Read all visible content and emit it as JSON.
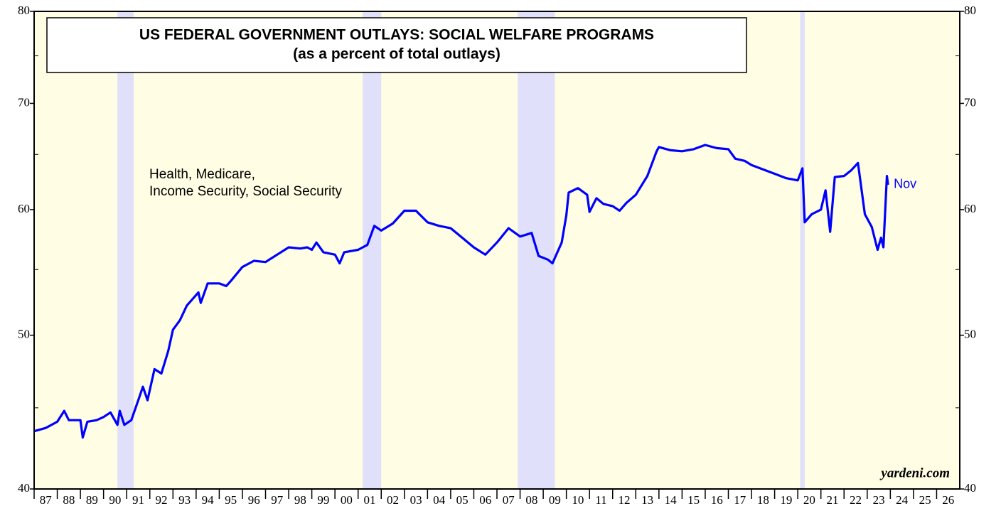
{
  "chart_data": {
    "type": "line",
    "title": "US FEDERAL GOVERNMENT OUTLAYS: SOCIAL WELFARE PROGRAMS",
    "subtitle": "(as a percent of total outlays)",
    "annotation": [
      "Health, Medicare,",
      "Income Security, Social Security"
    ],
    "end_label": "Nov",
    "source": "yardeni.com",
    "log_scale": true,
    "color": "#0000ff",
    "background": "#fffde3",
    "shade_color": "#e0e0fa",
    "shaded_periods": [
      [
        1990.6,
        1991.3
      ],
      [
        2001.2,
        2002.0
      ],
      [
        2007.9,
        2009.5
      ],
      [
        2020.1,
        2020.3
      ]
    ],
    "x": [
      1987.0,
      1987.5,
      1988.0,
      1988.3,
      1988.5,
      1989.0,
      1989.1,
      1989.3,
      1989.7,
      1990.0,
      1990.3,
      1990.6,
      1990.7,
      1990.9,
      1991.2,
      1991.5,
      1991.7,
      1991.9,
      1992.2,
      1992.5,
      1992.8,
      1993.0,
      1993.3,
      1993.6,
      1993.9,
      1994.1,
      1994.2,
      1994.5,
      1995.0,
      1995.3,
      1995.5,
      1996.0,
      1996.5,
      1997.0,
      1997.5,
      1998.0,
      1998.5,
      1998.8,
      1999.0,
      1999.2,
      1999.5,
      2000.0,
      2000.2,
      2000.4,
      2001.0,
      2001.4,
      2001.7,
      2002.0,
      2002.5,
      2003.0,
      2003.5,
      2004.0,
      2004.5,
      2005.0,
      2005.5,
      2006.0,
      2006.5,
      2007.0,
      2007.5,
      2008.0,
      2008.5,
      2008.8,
      2009.2,
      2009.4,
      2009.8,
      2010.0,
      2010.1,
      2010.5,
      2010.9,
      2011.0,
      2011.3,
      2011.6,
      2012.0,
      2012.3,
      2012.6,
      2013.0,
      2013.5,
      2013.9,
      2014.0,
      2014.5,
      2015.0,
      2015.5,
      2016.0,
      2016.5,
      2017.0,
      2017.3,
      2017.7,
      2018.0,
      2018.5,
      2019.0,
      2019.5,
      2020.0,
      2020.2,
      2020.3,
      2020.6,
      2021.0,
      2021.2,
      2021.4,
      2021.6,
      2022.0,
      2022.3,
      2022.6,
      2022.9,
      2023.2,
      2023.45,
      2023.6,
      2023.7,
      2023.85,
      2023.9
    ],
    "values": [
      43.5,
      43.7,
      44.1,
      44.8,
      44.2,
      44.2,
      43.1,
      44.1,
      44.2,
      44.4,
      44.7,
      43.9,
      44.8,
      43.9,
      44.2,
      45.5,
      46.4,
      45.5,
      47.6,
      47.3,
      48.9,
      50.4,
      51.1,
      52.2,
      52.8,
      53.2,
      52.4,
      53.9,
      53.9,
      53.7,
      54.1,
      55.2,
      55.7,
      55.6,
      56.2,
      56.8,
      56.7,
      56.8,
      56.6,
      57.2,
      56.4,
      56.2,
      55.5,
      56.4,
      56.6,
      57.0,
      58.6,
      58.2,
      58.8,
      59.9,
      59.9,
      58.9,
      58.6,
      58.4,
      57.6,
      56.8,
      56.2,
      57.2,
      58.4,
      57.7,
      58.0,
      56.1,
      55.8,
      55.5,
      57.2,
      59.5,
      61.5,
      61.9,
      61.3,
      59.8,
      61.0,
      60.5,
      60.3,
      59.9,
      60.6,
      61.3,
      63.0,
      65.3,
      65.7,
      65.4,
      65.3,
      65.5,
      65.9,
      65.6,
      65.5,
      64.6,
      64.4,
      64.0,
      63.6,
      63.2,
      62.8,
      62.6,
      63.7,
      58.9,
      59.6,
      60.0,
      61.7,
      58.1,
      62.9,
      63.0,
      63.5,
      64.2,
      59.6,
      58.5,
      56.6,
      57.6,
      56.8,
      63.0,
      62.2
    ],
    "xlim": [
      1987,
      2027
    ],
    "xticks": [
      {
        "value": 1987,
        "label": "87"
      },
      {
        "value": 1988,
        "label": "88"
      },
      {
        "value": 1989,
        "label": "89"
      },
      {
        "value": 1990,
        "label": "90"
      },
      {
        "value": 1991,
        "label": "91"
      },
      {
        "value": 1992,
        "label": "92"
      },
      {
        "value": 1993,
        "label": "93"
      },
      {
        "value": 1994,
        "label": "94"
      },
      {
        "value": 1995,
        "label": "95"
      },
      {
        "value": 1996,
        "label": "96"
      },
      {
        "value": 1997,
        "label": "97"
      },
      {
        "value": 1998,
        "label": "98"
      },
      {
        "value": 1999,
        "label": "99"
      },
      {
        "value": 2000,
        "label": "00"
      },
      {
        "value": 2001,
        "label": "01"
      },
      {
        "value": 2002,
        "label": "02"
      },
      {
        "value": 2003,
        "label": "03"
      },
      {
        "value": 2004,
        "label": "04"
      },
      {
        "value": 2005,
        "label": "05"
      },
      {
        "value": 2006,
        "label": "06"
      },
      {
        "value": 2007,
        "label": "07"
      },
      {
        "value": 2008,
        "label": "08"
      },
      {
        "value": 2009,
        "label": "09"
      },
      {
        "value": 2010,
        "label": "10"
      },
      {
        "value": 2011,
        "label": "11"
      },
      {
        "value": 2012,
        "label": "12"
      },
      {
        "value": 2013,
        "label": "13"
      },
      {
        "value": 2014,
        "label": "14"
      },
      {
        "value": 2015,
        "label": "15"
      },
      {
        "value": 2016,
        "label": "16"
      },
      {
        "value": 2017,
        "label": "17"
      },
      {
        "value": 2018,
        "label": "18"
      },
      {
        "value": 2019,
        "label": "19"
      },
      {
        "value": 2020,
        "label": "20"
      },
      {
        "value": 2021,
        "label": "21"
      },
      {
        "value": 2022,
        "label": "22"
      },
      {
        "value": 2023,
        "label": "23"
      },
      {
        "value": 2024,
        "label": "24"
      },
      {
        "value": 2025,
        "label": "25"
      },
      {
        "value": 2026,
        "label": "26"
      }
    ],
    "ylim": [
      40,
      80
    ],
    "yticks": [
      40,
      50,
      60,
      70,
      80
    ],
    "yminor": [
      45,
      55,
      65,
      75
    ]
  }
}
